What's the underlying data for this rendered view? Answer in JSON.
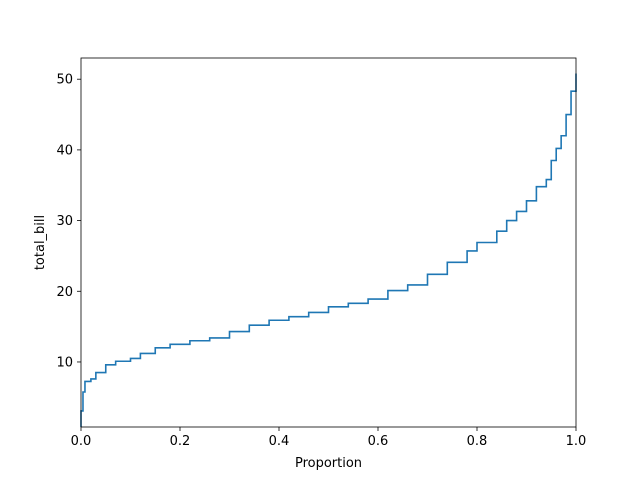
{
  "chart_data": {
    "type": "line",
    "subtype": "ecdf-step",
    "orientation": "vertical-ecdf",
    "xlabel": "Proportion",
    "ylabel": "total_bill",
    "xlim": [
      0.0,
      1.0
    ],
    "ylim": [
      0.8,
      53.0
    ],
    "x_ticks": [
      0.0,
      0.2,
      0.4,
      0.6,
      0.8,
      1.0
    ],
    "x_tick_labels": [
      "0.0",
      "0.2",
      "0.4",
      "0.6",
      "0.8",
      "1.0"
    ],
    "y_ticks": [
      10,
      20,
      30,
      40,
      50
    ],
    "y_tick_labels": [
      "10",
      "20",
      "30",
      "40",
      "50"
    ],
    "grid": false,
    "legend": "none",
    "line_color": "#1f77b4",
    "points": [
      {
        "x": 0.0,
        "y": 3.07
      },
      {
        "x": 0.004,
        "y": 5.75
      },
      {
        "x": 0.008,
        "y": 7.25
      },
      {
        "x": 0.02,
        "y": 7.6
      },
      {
        "x": 0.03,
        "y": 8.5
      },
      {
        "x": 0.05,
        "y": 9.6
      },
      {
        "x": 0.07,
        "y": 10.1
      },
      {
        "x": 0.1,
        "y": 10.5
      },
      {
        "x": 0.12,
        "y": 11.2
      },
      {
        "x": 0.15,
        "y": 12.0
      },
      {
        "x": 0.18,
        "y": 12.5
      },
      {
        "x": 0.22,
        "y": 13.0
      },
      {
        "x": 0.26,
        "y": 13.4
      },
      {
        "x": 0.3,
        "y": 14.3
      },
      {
        "x": 0.34,
        "y": 15.2
      },
      {
        "x": 0.38,
        "y": 15.9
      },
      {
        "x": 0.42,
        "y": 16.4
      },
      {
        "x": 0.46,
        "y": 17.0
      },
      {
        "x": 0.5,
        "y": 17.8
      },
      {
        "x": 0.54,
        "y": 18.3
      },
      {
        "x": 0.58,
        "y": 18.9
      },
      {
        "x": 0.62,
        "y": 20.1
      },
      {
        "x": 0.66,
        "y": 20.9
      },
      {
        "x": 0.7,
        "y": 22.4
      },
      {
        "x": 0.74,
        "y": 24.1
      },
      {
        "x": 0.78,
        "y": 25.7
      },
      {
        "x": 0.8,
        "y": 26.9
      },
      {
        "x": 0.84,
        "y": 28.5
      },
      {
        "x": 0.86,
        "y": 30.0
      },
      {
        "x": 0.88,
        "y": 31.3
      },
      {
        "x": 0.9,
        "y": 32.8
      },
      {
        "x": 0.92,
        "y": 34.8
      },
      {
        "x": 0.94,
        "y": 35.8
      },
      {
        "x": 0.95,
        "y": 38.5
      },
      {
        "x": 0.96,
        "y": 40.2
      },
      {
        "x": 0.97,
        "y": 42.0
      },
      {
        "x": 0.98,
        "y": 45.0
      },
      {
        "x": 0.99,
        "y": 48.3
      },
      {
        "x": 1.0,
        "y": 50.81
      }
    ]
  }
}
